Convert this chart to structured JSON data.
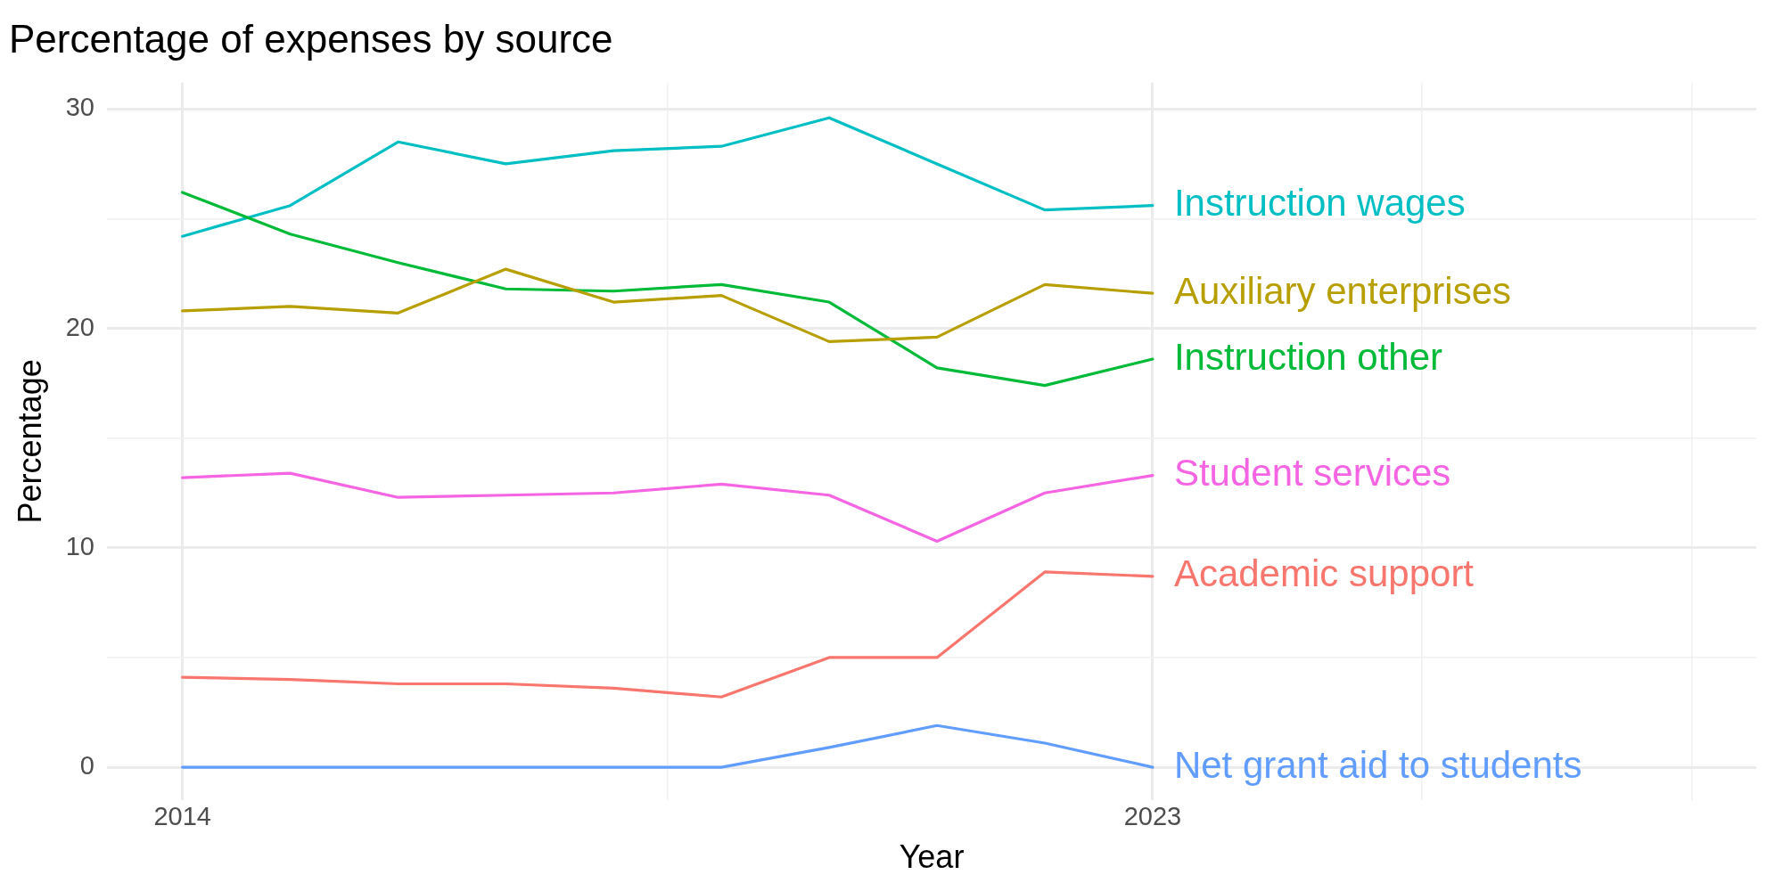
{
  "chart_data": {
    "type": "line",
    "title": "Percentage of expenses by source",
    "xlabel": "Year",
    "ylabel": "Percentage",
    "x": [
      2014,
      2015,
      2016,
      2017,
      2018,
      2019,
      2020,
      2021,
      2022,
      2023
    ],
    "series": [
      {
        "name": "Academic support",
        "color": "#f8766d",
        "values": [
          4.1,
          4.0,
          3.8,
          3.8,
          3.6,
          3.2,
          5.0,
          5.0,
          8.9,
          8.7
        ]
      },
      {
        "name": "Auxiliary enterprises",
        "color": "#b79f00",
        "values": [
          20.8,
          21.0,
          20.7,
          22.7,
          21.2,
          21.5,
          19.4,
          19.6,
          22.0,
          21.6
        ]
      },
      {
        "name": "Instruction other",
        "color": "#00ba38",
        "values": [
          26.2,
          24.3,
          23.0,
          21.8,
          21.7,
          22.0,
          21.2,
          18.2,
          17.4,
          18.6
        ]
      },
      {
        "name": "Instruction wages",
        "color": "#00bfc4",
        "values": [
          24.2,
          25.6,
          28.5,
          27.5,
          28.1,
          28.3,
          29.6,
          27.5,
          25.4,
          25.6
        ]
      },
      {
        "name": "Net grant aid to students",
        "color": "#619cff",
        "values": [
          0,
          0,
          0,
          0,
          0,
          0,
          0.9,
          1.9,
          1.1,
          0
        ]
      },
      {
        "name": "Student services",
        "color": "#f564e3",
        "values": [
          13.2,
          13.4,
          12.3,
          12.4,
          12.5,
          12.9,
          12.4,
          10.3,
          12.5,
          13.3
        ]
      }
    ],
    "xlim": [
      2013.3,
      2028.6
    ],
    "xticks": [
      2014,
      {
        "value": 2018.5,
        "label": null
      },
      2023,
      {
        "value": 2025.5,
        "label": null
      },
      {
        "value": 2028,
        "label": null
      }
    ],
    "ylim": [
      -1.5,
      31.2
    ],
    "yticks": [
      0,
      {
        "value": 5,
        "label": null
      },
      10,
      {
        "value": 15,
        "label": null
      },
      20,
      {
        "value": 25,
        "label": null
      },
      30
    ],
    "grid": true,
    "legend": false,
    "marker": "none",
    "line_style": "solid"
  }
}
